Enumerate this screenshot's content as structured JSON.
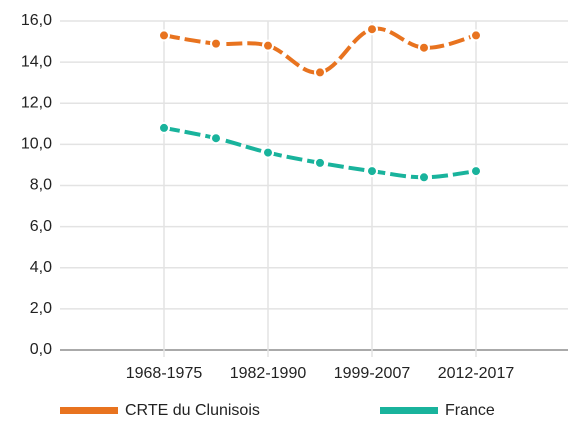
{
  "chart_data": {
    "type": "line",
    "categories": [
      "1968-1975",
      null,
      "1982-1990",
      null,
      "1999-2007",
      null,
      "2012-2017"
    ],
    "series": [
      {
        "name": "CRTE du Clunisois",
        "color": "#e8731f",
        "values": [
          15.3,
          14.9,
          14.8,
          13.5,
          15.6,
          14.7,
          15.3
        ]
      },
      {
        "name": "France",
        "color": "#19b39c",
        "values": [
          10.8,
          10.3,
          9.6,
          9.1,
          8.7,
          8.4,
          8.7
        ]
      }
    ],
    "ylim": [
      0,
      16
    ],
    "yticks": [
      {
        "value": 0,
        "label": "0,0"
      },
      {
        "value": 2,
        "label": "2,0"
      },
      {
        "value": 4,
        "label": "4,0"
      },
      {
        "value": 6,
        "label": "6,0"
      },
      {
        "value": 8,
        "label": "8,0"
      },
      {
        "value": 10,
        "label": "10,0"
      },
      {
        "value": 12,
        "label": "12,0"
      },
      {
        "value": 14,
        "label": "14,0"
      },
      {
        "value": 16,
        "label": "16,0"
      }
    ],
    "grid": true,
    "legend": "bottom"
  }
}
